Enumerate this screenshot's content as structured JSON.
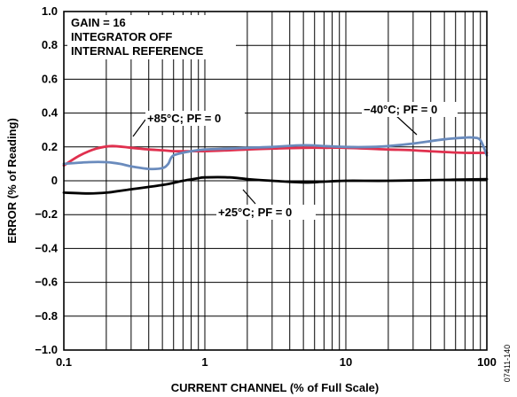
{
  "chart_data": {
    "type": "line",
    "xlabel": "CURRENT CHANNEL (% of Full Scale)",
    "ylabel": "ERROR (% of Reading)",
    "x_scale": "log",
    "xlim": [
      0.1,
      100
    ],
    "ylim": [
      -1.0,
      1.0
    ],
    "grid": true,
    "x_ticks": [
      "0.1",
      "1",
      "10",
      "100"
    ],
    "y_ticks": [
      "1.0",
      "0.8",
      "0.6",
      "0.4",
      "0.2",
      "0",
      "−0.2",
      "−0.4",
      "−0.6",
      "−0.8",
      "−1.0"
    ],
    "notes": [
      "GAIN = 16",
      "INTEGRATOR OFF",
      "INTERNAL REFERENCE"
    ],
    "figure_id": "07411-140",
    "series": [
      {
        "name": "+85°C; PF = 0",
        "color": "#e0304e",
        "x": [
          0.1,
          0.13,
          0.17,
          0.22,
          0.3,
          0.4,
          0.5,
          0.6,
          0.8,
          1,
          1.5,
          2,
          3,
          5,
          7,
          10,
          20,
          30,
          50,
          70,
          100
        ],
        "y": [
          0.09,
          0.15,
          0.19,
          0.205,
          0.195,
          0.185,
          0.18,
          0.175,
          0.175,
          0.175,
          0.18,
          0.185,
          0.19,
          0.195,
          0.195,
          0.195,
          0.185,
          0.18,
          0.17,
          0.165,
          0.165
        ]
      },
      {
        "name": "−40°C; PF = 0",
        "color": "#6a8bbd",
        "x": [
          0.1,
          0.15,
          0.2,
          0.25,
          0.3,
          0.4,
          0.5,
          0.55,
          0.6,
          0.8,
          1,
          1.5,
          2,
          3,
          5,
          7,
          10,
          15,
          20,
          30,
          50,
          70,
          80,
          90,
          100
        ],
        "y": [
          0.1,
          0.11,
          0.11,
          0.1,
          0.085,
          0.07,
          0.075,
          0.1,
          0.15,
          0.175,
          0.185,
          0.19,
          0.195,
          0.2,
          0.21,
          0.205,
          0.2,
          0.2,
          0.205,
          0.22,
          0.245,
          0.255,
          0.255,
          0.24,
          0.15
        ]
      },
      {
        "name": "+25°C; PF = 0",
        "color": "#000000",
        "x": [
          0.1,
          0.15,
          0.2,
          0.3,
          0.5,
          0.7,
          0.9,
          1,
          1.5,
          2,
          3,
          5,
          7,
          10,
          20,
          50,
          100
        ],
        "y": [
          -0.07,
          -0.075,
          -0.07,
          -0.05,
          -0.025,
          0.0,
          0.015,
          0.02,
          0.02,
          0.01,
          0.0,
          -0.01,
          -0.005,
          0.0,
          0.0,
          0.005,
          0.01
        ]
      }
    ]
  }
}
